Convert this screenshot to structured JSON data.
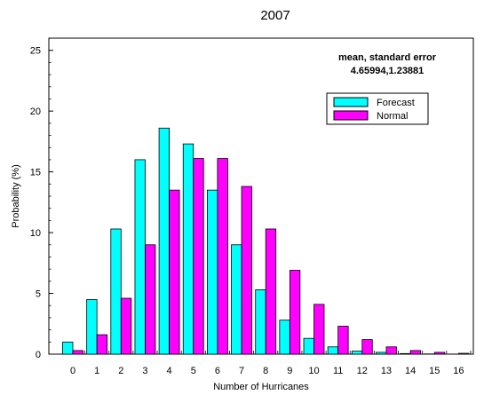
{
  "chart_data": {
    "type": "bar",
    "title": "2007",
    "xlabel": "Number of Hurricanes",
    "ylabel": "Probability (%)",
    "categories": [
      "0",
      "1",
      "2",
      "3",
      "4",
      "5",
      "6",
      "7",
      "8",
      "9",
      "10",
      "11",
      "12",
      "13",
      "14",
      "15",
      "16"
    ],
    "ylim": [
      0,
      26
    ],
    "yticks": [
      0,
      5,
      10,
      15,
      20,
      25
    ],
    "series": [
      {
        "name": "Forecast",
        "color": "#00ffff",
        "values": [
          1.0,
          4.5,
          10.3,
          16.0,
          18.6,
          17.3,
          13.5,
          9.0,
          5.3,
          2.8,
          1.3,
          0.6,
          0.25,
          0.15,
          0.05,
          0.02,
          0.01
        ]
      },
      {
        "name": "Normal",
        "color": "#ff00ff",
        "values": [
          0.3,
          1.6,
          4.6,
          9.0,
          13.5,
          16.1,
          16.1,
          13.8,
          10.3,
          6.9,
          4.1,
          2.3,
          1.2,
          0.6,
          0.3,
          0.15,
          0.07
        ]
      }
    ],
    "annotation": {
      "line1": "mean, standard error",
      "line2": "4.65994,1.23881"
    },
    "legend_position": "top-right",
    "grid": false
  }
}
